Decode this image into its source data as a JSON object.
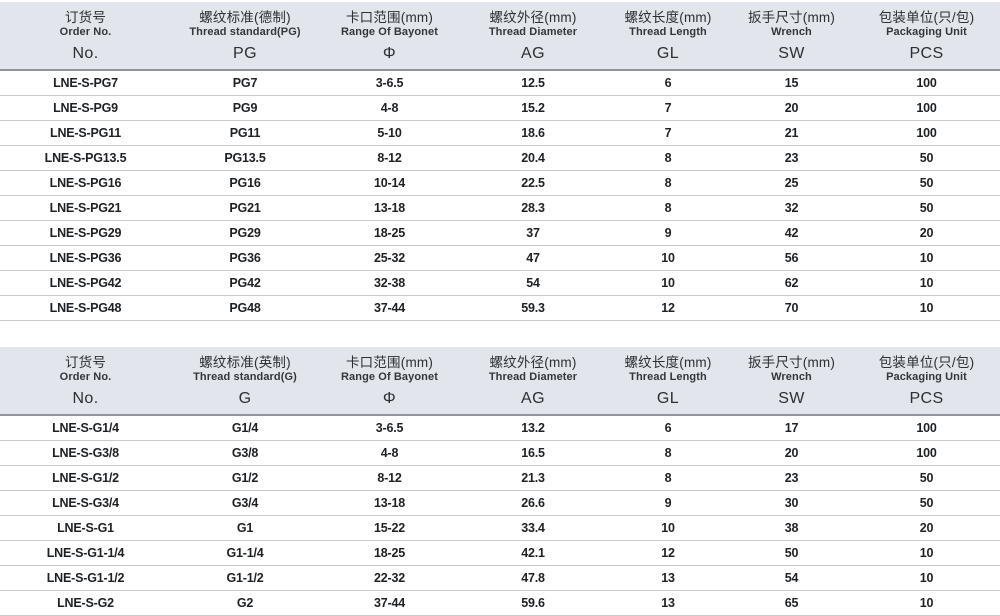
{
  "colors": {
    "header_bg": "#e2e5eb",
    "header_rule": "#8f959b",
    "row_rule": "#c9ccd0",
    "text": "#1e2124"
  },
  "tables": [
    {
      "id": "pg-thread-table",
      "columns": [
        {
          "key": "order-no",
          "cn": "订货号",
          "en": "Order No.",
          "code": "No."
        },
        {
          "key": "thread-standard",
          "cn": "螺纹标准(德制)",
          "en": "Thread standard(PG)",
          "code": "PG"
        },
        {
          "key": "bayonet-range",
          "cn": "卡口范围(mm)",
          "en": "Range Of Bayonet",
          "code": "Φ"
        },
        {
          "key": "thread-diameter",
          "cn": "螺纹外径(mm)",
          "en": "Thread Diameter",
          "code": "AG"
        },
        {
          "key": "thread-length",
          "cn": "螺纹长度(mm)",
          "en": "Thread Length",
          "code": "GL"
        },
        {
          "key": "wrench-size",
          "cn": "扳手尺寸(mm)",
          "en": "Wrench",
          "code": "SW"
        },
        {
          "key": "packaging-unit",
          "cn": "包装单位(只/包)",
          "en": "Packaging Unit",
          "code": "PCS"
        }
      ],
      "rows": [
        [
          "LNE-S-PG7",
          "PG7",
          "3-6.5",
          "12.5",
          "6",
          "15",
          "100"
        ],
        [
          "LNE-S-PG9",
          "PG9",
          "4-8",
          "15.2",
          "7",
          "20",
          "100"
        ],
        [
          "LNE-S-PG11",
          "PG11",
          "5-10",
          "18.6",
          "7",
          "21",
          "100"
        ],
        [
          "LNE-S-PG13.5",
          "PG13.5",
          "8-12",
          "20.4",
          "8",
          "23",
          "50"
        ],
        [
          "LNE-S-PG16",
          "PG16",
          "10-14",
          "22.5",
          "8",
          "25",
          "50"
        ],
        [
          "LNE-S-PG21",
          "PG21",
          "13-18",
          "28.3",
          "8",
          "32",
          "50"
        ],
        [
          "LNE-S-PG29",
          "PG29",
          "18-25",
          "37",
          "9",
          "42",
          "20"
        ],
        [
          "LNE-S-PG36",
          "PG36",
          "25-32",
          "47",
          "10",
          "56",
          "10"
        ],
        [
          "LNE-S-PG42",
          "PG42",
          "32-38",
          "54",
          "10",
          "62",
          "10"
        ],
        [
          "LNE-S-PG48",
          "PG48",
          "37-44",
          "59.3",
          "12",
          "70",
          "10"
        ]
      ]
    },
    {
      "id": "g-thread-table",
      "columns": [
        {
          "key": "order-no",
          "cn": "订货号",
          "en": "Order No.",
          "code": "No."
        },
        {
          "key": "thread-standard",
          "cn": "螺纹标准(英制)",
          "en": "Thread standard(G)",
          "code": "G"
        },
        {
          "key": "bayonet-range",
          "cn": "卡口范围(mm)",
          "en": "Range Of Bayonet",
          "code": "Φ"
        },
        {
          "key": "thread-diameter",
          "cn": "螺纹外径(mm)",
          "en": "Thread Diameter",
          "code": "AG"
        },
        {
          "key": "thread-length",
          "cn": "螺纹长度(mm)",
          "en": "Thread Length",
          "code": "GL"
        },
        {
          "key": "wrench-size",
          "cn": "扳手尺寸(mm)",
          "en": "Wrench",
          "code": "SW"
        },
        {
          "key": "packaging-unit",
          "cn": "包装单位(只/包)",
          "en": "Packaging Unit",
          "code": "PCS"
        }
      ],
      "rows": [
        [
          "LNE-S-G1/4",
          "G1/4",
          "3-6.5",
          "13.2",
          "6",
          "17",
          "100"
        ],
        [
          "LNE-S-G3/8",
          "G3/8",
          "4-8",
          "16.5",
          "8",
          "20",
          "100"
        ],
        [
          "LNE-S-G1/2",
          "G1/2",
          "8-12",
          "21.3",
          "8",
          "23",
          "50"
        ],
        [
          "LNE-S-G3/4",
          "G3/4",
          "13-18",
          "26.6",
          "9",
          "30",
          "50"
        ],
        [
          "LNE-S-G1",
          "G1",
          "15-22",
          "33.4",
          "10",
          "38",
          "20"
        ],
        [
          "LNE-S-G1-1/4",
          "G1-1/4",
          "18-25",
          "42.1",
          "12",
          "50",
          "10"
        ],
        [
          "LNE-S-G1-1/2",
          "G1-1/2",
          "22-32",
          "47.8",
          "13",
          "54",
          "10"
        ],
        [
          "LNE-S-G2",
          "G2",
          "37-44",
          "59.6",
          "13",
          "65",
          "10"
        ]
      ]
    }
  ]
}
